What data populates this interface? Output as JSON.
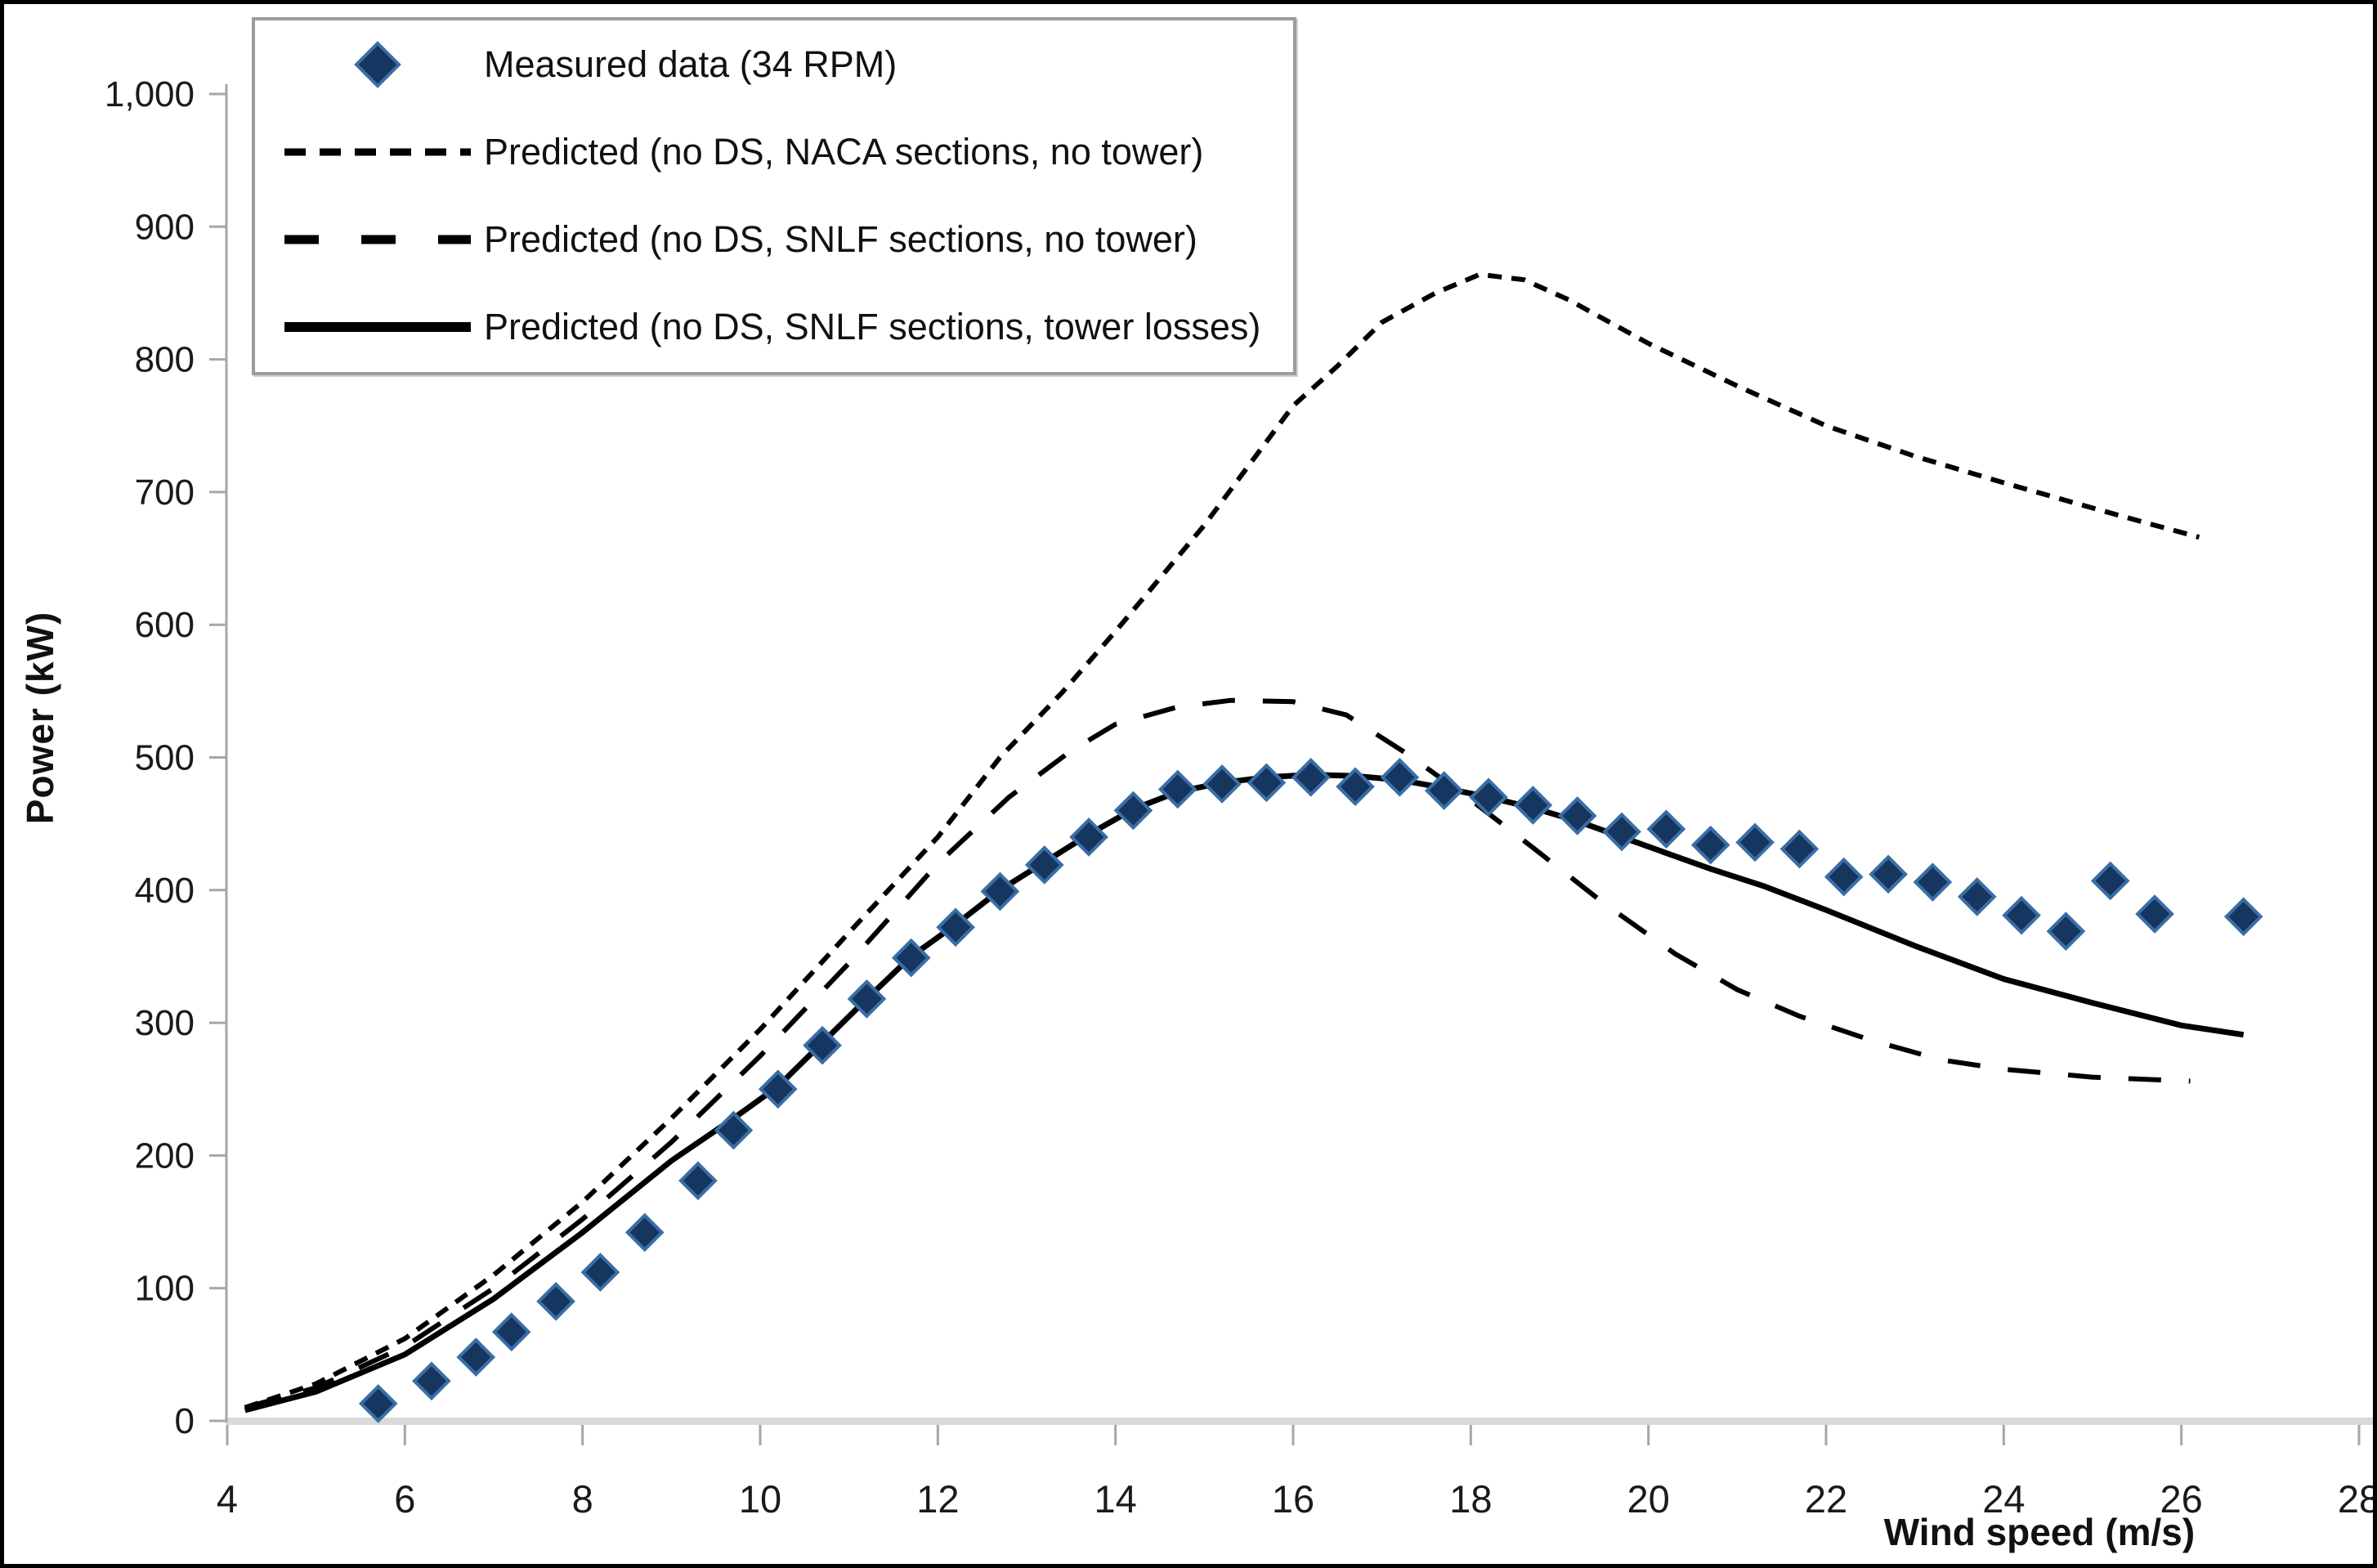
{
  "chart_data": {
    "type": "line",
    "title": "",
    "xlabel": "Wind speed  (m/s)",
    "ylabel": "Power (kW)",
    "xlim": [
      4,
      28
    ],
    "ylim": [
      0,
      1000
    ],
    "grid": false,
    "legend_position": "top-left",
    "x_ticks": [
      4,
      6,
      8,
      10,
      12,
      14,
      16,
      18,
      20,
      22,
      24,
      26,
      28
    ],
    "y_ticks": [
      0,
      100,
      200,
      300,
      400,
      500,
      600,
      700,
      800,
      900,
      1000
    ],
    "y_tick_labels": [
      "0",
      "100",
      "200",
      "300",
      "400",
      "500",
      "600",
      "700",
      "800",
      "900",
      "1,000"
    ],
    "x_tick_labels": [
      "4",
      "6",
      "8",
      "10",
      "12",
      "14",
      "16",
      "18",
      "20",
      "22",
      "24",
      "26",
      "28"
    ],
    "series": [
      {
        "name": "Measured data (34 RPM)",
        "type": "scatter",
        "marker": "diamond",
        "color": "#14365f",
        "x": [
          5.7,
          6.3,
          6.8,
          7.2,
          7.7,
          8.2,
          8.7,
          9.3,
          9.7,
          10.2,
          10.7,
          11.2,
          11.7,
          12.2,
          12.7,
          13.2,
          13.7,
          14.2,
          14.7,
          15.2,
          15.7,
          16.2,
          16.7,
          17.2,
          17.7,
          18.2,
          18.7,
          19.2,
          19.7,
          20.2,
          20.7,
          21.2,
          21.7,
          22.2,
          22.7,
          23.2,
          23.7,
          24.2,
          24.7,
          25.2,
          25.7,
          26.7
        ],
        "y": [
          13,
          30,
          48,
          67,
          90,
          112,
          142,
          181,
          219,
          250,
          283,
          318,
          349,
          372,
          399,
          419,
          440,
          460,
          476,
          480,
          481,
          485,
          478,
          485,
          475,
          470,
          464,
          456,
          444,
          446,
          434,
          436,
          431,
          410,
          412,
          406,
          395,
          381,
          369,
          407,
          382,
          380
        ]
      },
      {
        "name": "Predicted (no DS, NACA sections, no tower)",
        "type": "line",
        "line_style": "short-dash",
        "color": "#000000",
        "x": [
          4.2,
          5,
          6,
          7,
          8,
          9,
          10,
          11,
          12,
          12.7,
          13.4,
          14,
          15,
          16,
          16.5,
          17,
          17.6,
          18.1,
          18.6,
          19.1,
          20,
          21,
          22,
          23,
          24,
          25,
          25.7,
          26.2
        ],
        "y": [
          10,
          28,
          62,
          110,
          165,
          228,
          295,
          368,
          440,
          500,
          549,
          595,
          675,
          765,
          795,
          828,
          850,
          864,
          860,
          845,
          812,
          780,
          750,
          727,
          707,
          688,
          675,
          666
        ]
      },
      {
        "name": "Predicted (no DS, SNLF sections, no tower)",
        "type": "line",
        "line_style": "long-dash",
        "color": "#000000",
        "x": [
          4.2,
          5,
          6,
          7,
          8,
          9,
          10,
          11,
          12,
          12.8,
          13.5,
          14,
          14.7,
          15.3,
          16,
          16.6,
          17.3,
          18,
          18.7,
          19.5,
          20.3,
          21,
          21.7,
          22.5,
          23.3,
          24,
          25,
          26.1
        ],
        "y": [
          10,
          25,
          56,
          100,
          152,
          210,
          275,
          345,
          420,
          470,
          505,
          525,
          538,
          543,
          542,
          532,
          502,
          468,
          432,
          390,
          352,
          325,
          305,
          287,
          272,
          265,
          259,
          256
        ]
      },
      {
        "name": "Predicted (no DS, SNLF sections, tower losses)",
        "type": "line",
        "line_style": "solid",
        "color": "#000000",
        "x": [
          4.2,
          5,
          6,
          7,
          8,
          9,
          9.7,
          10.2,
          10.7,
          11.2,
          11.7,
          12.2,
          12.7,
          13.2,
          13.7,
          14.2,
          14.7,
          15.2,
          15.7,
          16.2,
          16.7,
          17.2,
          17.7,
          18.2,
          18.7,
          19.2,
          19.7,
          20.2,
          20.7,
          21.3,
          22,
          23,
          24,
          25,
          26,
          26.7
        ],
        "y": [
          8,
          22,
          50,
          92,
          142,
          196,
          228,
          252,
          285,
          318,
          350,
          374,
          400,
          421,
          442,
          461,
          474,
          481,
          485,
          487,
          486,
          483,
          477,
          470,
          462,
          452,
          440,
          428,
          416,
          403,
          385,
          358,
          333,
          315,
          298,
          291
        ]
      }
    ]
  }
}
